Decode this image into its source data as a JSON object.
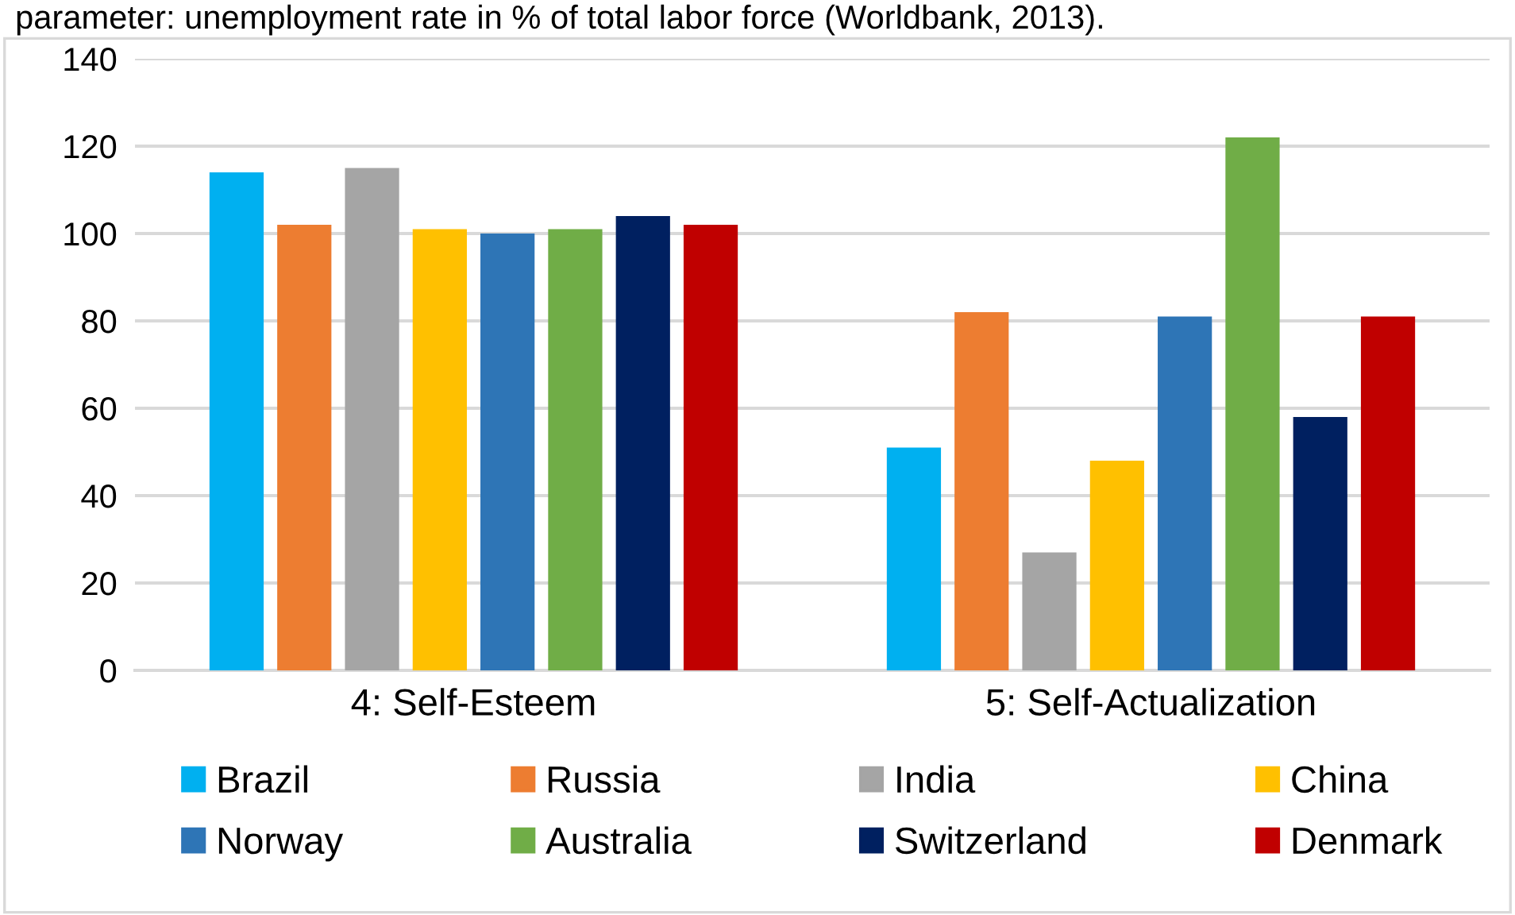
{
  "chart_data": {
    "type": "bar",
    "subtitle": "parameter: unemployment rate in % of total labor force (Worldbank, 2013).",
    "categories": [
      "4: Self-Esteem",
      "5: Self-Actualization"
    ],
    "series": [
      {
        "name": "Brazil",
        "color": "#00b0f0",
        "values": [
          114,
          51
        ]
      },
      {
        "name": "Russia",
        "color": "#ed7d31",
        "values": [
          102,
          82
        ]
      },
      {
        "name": "India",
        "color": "#a5a5a5",
        "values": [
          115,
          27
        ]
      },
      {
        "name": "China",
        "color": "#ffc000",
        "values": [
          101,
          48
        ]
      },
      {
        "name": "Norway",
        "color": "#2e75b6",
        "values": [
          100,
          81
        ]
      },
      {
        "name": "Australia",
        "color": "#70ad47",
        "values": [
          101,
          122
        ]
      },
      {
        "name": "Switzerland",
        "color": "#002060",
        "values": [
          104,
          58
        ]
      },
      {
        "name": "Denmark",
        "color": "#c00000",
        "values": [
          102,
          81
        ]
      }
    ],
    "ylim": [
      0,
      140
    ],
    "yticks": [
      0,
      20,
      40,
      60,
      80,
      100,
      120,
      140
    ],
    "grid": "y",
    "legend": "bottom"
  }
}
